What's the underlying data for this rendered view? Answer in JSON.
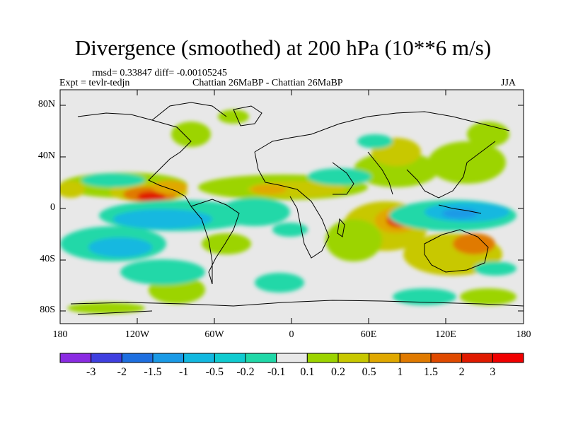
{
  "title": "Divergence (smoothed) at 200 hPa (10**6 m/s)",
  "stats_line": "rmsd= 0.33847 diff= -0.00105245",
  "experiment": "Expt = tevlr-tedjn",
  "periods": "Chattian  26MaBP - Chattian  26MaBP",
  "season": "JJA",
  "y_ticks": [
    "80N",
    "40N",
    "0",
    "40S",
    "80S"
  ],
  "x_ticks": [
    "180",
    "120W",
    "60W",
    "0",
    "60E",
    "120E",
    "180"
  ],
  "colorbar": {
    "labels": [
      "-3",
      "-2",
      "-1.5",
      "-1",
      "-0.5",
      "-0.2",
      "-0.1",
      "0.1",
      "0.2",
      "0.5",
      "1",
      "1.5",
      "2",
      "3"
    ],
    "colors": [
      "#8a2be2",
      "#3f3fe0",
      "#1e6fe0",
      "#1a9ae6",
      "#12b8e0",
      "#10cbd0",
      "#20d8a8",
      "#e8e8e8",
      "#9cd400",
      "#c8c800",
      "#e0a800",
      "#e07a00",
      "#e04a00",
      "#e01a00",
      "#f00000"
    ]
  }
}
